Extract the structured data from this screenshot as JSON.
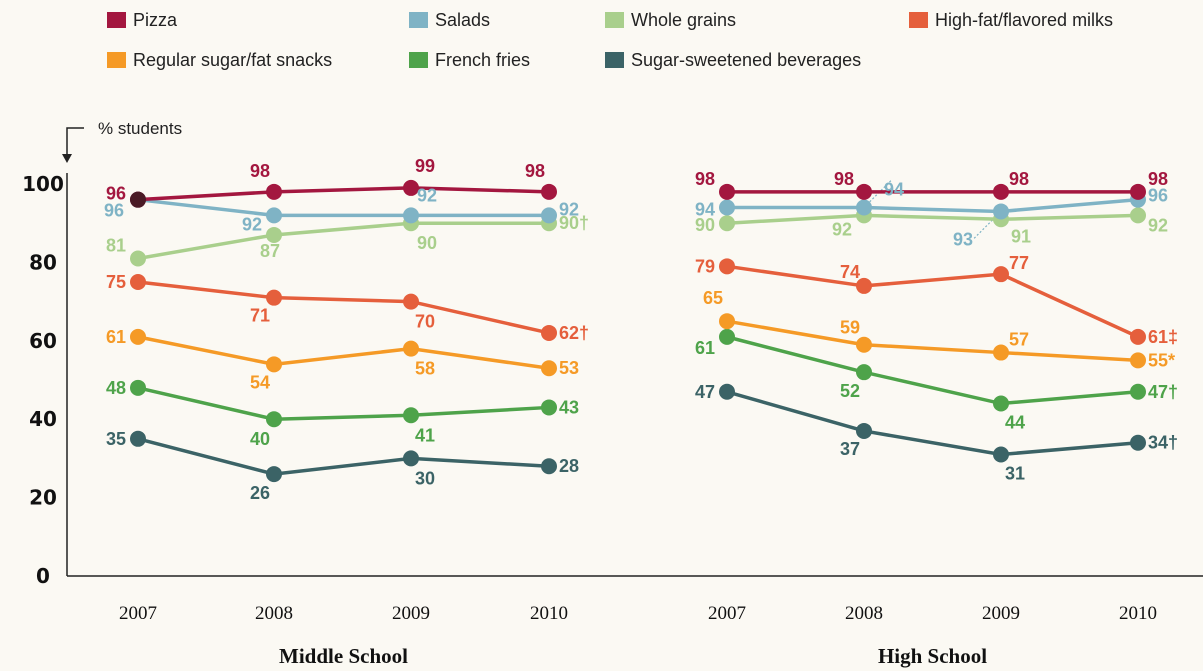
{
  "chart_data": {
    "type": "line",
    "ylabel": "% students",
    "ylim": [
      0,
      100
    ],
    "yticks": [
      0,
      20,
      40,
      60,
      80,
      100
    ],
    "x": [
      "2007",
      "2008",
      "2009",
      "2010"
    ],
    "panels": [
      {
        "title": "Middle School",
        "series": [
          {
            "name": "Pizza",
            "color": "#a3173f",
            "values": [
              96,
              98,
              99,
              98
            ],
            "labels": [
              "96",
              "98",
              "99",
              "98"
            ]
          },
          {
            "name": "Salads",
            "color": "#7fb3c5",
            "values": [
              96,
              92,
              92,
              92
            ],
            "labels": [
              "96",
              "92",
              "92",
              "92"
            ]
          },
          {
            "name": "Whole grains",
            "color": "#a9cf8c",
            "values": [
              81,
              87,
              90,
              90
            ],
            "labels": [
              "81",
              "87",
              "90",
              "90†"
            ]
          },
          {
            "name": "High-fat/flavored milks",
            "color": "#e55f3c",
            "values": [
              75,
              71,
              70,
              62
            ],
            "labels": [
              "75",
              "71",
              "70",
              "62†"
            ]
          },
          {
            "name": "Regular sugar/fat snacks",
            "color": "#f59a26",
            "values": [
              61,
              54,
              58,
              53
            ],
            "labels": [
              "61",
              "54",
              "58",
              "53"
            ]
          },
          {
            "name": "French fries",
            "color": "#4ea34a",
            "values": [
              48,
              40,
              41,
              43
            ],
            "labels": [
              "48",
              "40",
              "41",
              "43"
            ]
          },
          {
            "name": "Sugar-sweetened beverages",
            "color": "#3b6366",
            "values": [
              35,
              26,
              30,
              28
            ],
            "labels": [
              "35",
              "26",
              "30",
              "28"
            ]
          }
        ]
      },
      {
        "title": "High School",
        "series": [
          {
            "name": "Pizza",
            "color": "#a3173f",
            "values": [
              98,
              98,
              98,
              98
            ],
            "labels": [
              "98",
              "98",
              "98",
              "98"
            ]
          },
          {
            "name": "Salads",
            "color": "#7fb3c5",
            "values": [
              94,
              94,
              93,
              96
            ],
            "labels": [
              "94",
              "94",
              "93",
              "96"
            ]
          },
          {
            "name": "Whole grains",
            "color": "#a9cf8c",
            "values": [
              90,
              92,
              91,
              92
            ],
            "labels": [
              "90",
              "92",
              "91",
              "92"
            ]
          },
          {
            "name": "High-fat/flavored milks",
            "color": "#e55f3c",
            "values": [
              79,
              74,
              77,
              61
            ],
            "labels": [
              "79",
              "74",
              "77",
              "61‡"
            ]
          },
          {
            "name": "Regular sugar/fat snacks",
            "color": "#f59a26",
            "values": [
              65,
              59,
              57,
              55
            ],
            "labels": [
              "65",
              "59",
              "57",
              "55*"
            ]
          },
          {
            "name": "French fries",
            "color": "#4ea34a",
            "values": [
              61,
              52,
              44,
              47
            ],
            "labels": [
              "61",
              "52",
              "44",
              "47†"
            ]
          },
          {
            "name": "Sugar-sweetened beverages",
            "color": "#3b6366",
            "values": [
              47,
              37,
              31,
              34
            ],
            "labels": [
              "47",
              "37",
              "31",
              "34†"
            ]
          }
        ]
      }
    ],
    "legend": [
      {
        "name": "Pizza",
        "color": "#a3173f"
      },
      {
        "name": "Salads",
        "color": "#7fb3c5"
      },
      {
        "name": "Whole grains",
        "color": "#a9cf8c"
      },
      {
        "name": "High-fat/flavored milks",
        "color": "#e55f3c"
      },
      {
        "name": "Regular sugar/fat snacks",
        "color": "#f59a26"
      },
      {
        "name": "French fries",
        "color": "#4ea34a"
      },
      {
        "name": "Sugar-sweetened beverages",
        "color": "#3b6366"
      }
    ],
    "legend_position": "top",
    "grid": false
  }
}
